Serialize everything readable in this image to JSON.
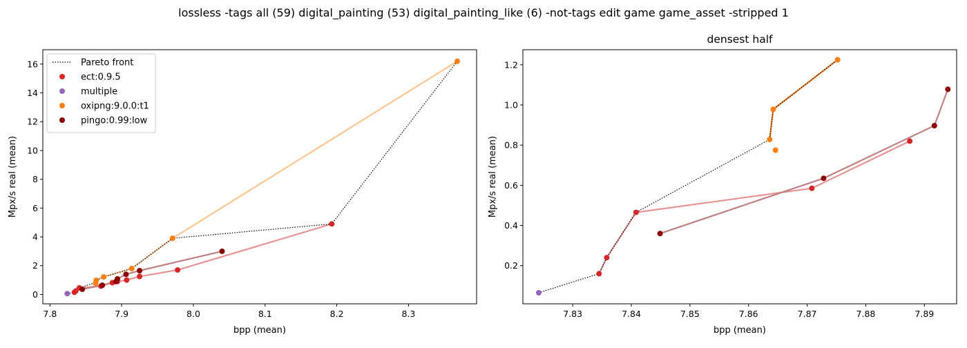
{
  "figure": {
    "suptitle": "lossless -tags all (59) digital_painting (53) digital_painting_like (6) -not-tags edit game game_asset -stripped 1"
  },
  "colors": {
    "ect": "#d62728",
    "multiple": "#9467bd",
    "oxipng": "#ff7f0e",
    "pingo": "#8b0000",
    "ect_line": "#e89293",
    "oxipng_line": "#fdc58f",
    "pingo_line": "#c08080",
    "pareto": "#000000"
  },
  "legend": {
    "items": [
      {
        "label": "Pareto front",
        "kind": "line"
      },
      {
        "label": "ect:0.9.5",
        "kind": "marker",
        "color": "#d62728"
      },
      {
        "label": "multiple",
        "kind": "marker",
        "color": "#9467bd"
      },
      {
        "label": "oxipng:9.0.0:t1",
        "kind": "marker",
        "color": "#ff7f0e"
      },
      {
        "label": "pingo:0.99:low",
        "kind": "marker",
        "color": "#8b0000"
      }
    ]
  },
  "chart_data": [
    {
      "type": "scatter",
      "title": "",
      "xlabel": "bpp (mean)",
      "ylabel": "Mpx/s real (mean)",
      "xlim": [
        7.79,
        8.395
      ],
      "ylim": [
        -0.65,
        17.0
      ],
      "xticks": [
        7.8,
        7.9,
        8.0,
        8.1,
        8.2,
        8.3
      ],
      "xtick_labels": [
        "7.8",
        "7.9",
        "8.0",
        "8.1",
        "8.2",
        "8.3"
      ],
      "yticks": [
        0,
        2,
        4,
        6,
        8,
        10,
        12,
        14,
        16
      ],
      "ytick_labels": [
        "0",
        "2",
        "4",
        "6",
        "8",
        "10",
        "12",
        "14",
        "16"
      ],
      "legend_position": "upper-left",
      "series": [
        {
          "name": "ect:0.9.5",
          "color": "#d62728",
          "line_color": "#e89293",
          "x": [
            7.834,
            7.836,
            7.841,
            7.871,
            7.887,
            7.894,
            7.907,
            7.925,
            7.978,
            8.193
          ],
          "y": [
            0.15,
            0.24,
            0.46,
            0.58,
            0.82,
            0.9,
            1.0,
            1.25,
            1.7,
            4.9
          ]
        },
        {
          "name": "multiple",
          "color": "#9467bd",
          "line_color": null,
          "x": [
            7.824
          ],
          "y": [
            0.06
          ]
        },
        {
          "name": "oxipng:9.0.0:t1",
          "color": "#ff7f0e",
          "line_color": "#fdc58f",
          "x": [
            7.8637,
            7.8645,
            7.875,
            7.914,
            7.971,
            8.368
          ],
          "y": [
            0.78,
            0.98,
            1.22,
            1.8,
            3.9,
            16.2
          ]
        },
        {
          "name": "pingo:0.99:low",
          "color": "#8b0000",
          "line_color": "#c08080",
          "x": [
            7.845,
            7.873,
            7.892,
            7.894,
            7.906,
            7.925,
            8.04
          ],
          "y": [
            0.36,
            0.64,
            0.9,
            1.08,
            1.4,
            1.65,
            3.0
          ]
        }
      ],
      "pareto_front": {
        "x": [
          7.824,
          7.8345,
          7.836,
          7.841,
          7.8637,
          7.8645,
          7.875,
          7.914,
          7.971,
          8.193,
          8.368
        ],
        "y": [
          0.06,
          0.16,
          0.24,
          0.46,
          0.83,
          0.98,
          1.22,
          1.8,
          3.9,
          4.9,
          16.2
        ]
      }
    },
    {
      "type": "scatter",
      "title": "densest half",
      "xlabel": "bpp (mean)",
      "ylabel": "Mpx/s real (mean)",
      "xlim": [
        7.8215,
        7.8955
      ],
      "ylim": [
        0.01,
        1.275
      ],
      "xticks": [
        7.83,
        7.84,
        7.85,
        7.86,
        7.87,
        7.88,
        7.89
      ],
      "xtick_labels": [
        "7.83",
        "7.84",
        "7.85",
        "7.86",
        "7.87",
        "7.88",
        "7.89"
      ],
      "yticks": [
        0.2,
        0.4,
        0.6,
        0.8,
        1.0,
        1.2
      ],
      "ytick_labels": [
        "0.2",
        "0.4",
        "0.6",
        "0.8",
        "1.0",
        "1.2"
      ],
      "series": [
        {
          "name": "ect:0.9.5",
          "color": "#d62728",
          "line_color": "#e89293",
          "x": [
            7.8345,
            7.8358,
            7.8408,
            7.8708,
            7.8875
          ],
          "y": [
            0.16,
            0.24,
            0.465,
            0.585,
            0.82
          ]
        },
        {
          "name": "multiple",
          "color": "#9467bd",
          "line_color": null,
          "x": [
            7.8242
          ],
          "y": [
            0.065
          ]
        },
        {
          "name": "oxipng:9.0.0:t1",
          "color": "#ff7f0e",
          "line_color": "#ff7f0e",
          "x": [
            7.8636,
            7.8642,
            7.8752
          ],
          "y": [
            0.828,
            0.978,
            1.225
          ]
        },
        {
          "name": "oxipng:9.0.0:t1",
          "color": "#ff7f0e",
          "line_color": null,
          "x": [
            7.8646
          ],
          "y": [
            0.775
          ]
        },
        {
          "name": "pingo:0.99:low",
          "color": "#8b0000",
          "line_color": "#c08080",
          "x": [
            7.8449,
            7.8728,
            7.8917,
            7.894
          ],
          "y": [
            0.36,
            0.635,
            0.897,
            1.078
          ]
        }
      ],
      "pareto_front": {
        "x": [
          7.8242,
          7.8345,
          7.8358,
          7.8408,
          7.8636,
          7.8642,
          7.8752
        ],
        "y": [
          0.065,
          0.16,
          0.24,
          0.465,
          0.828,
          0.978,
          1.225
        ]
      }
    }
  ]
}
